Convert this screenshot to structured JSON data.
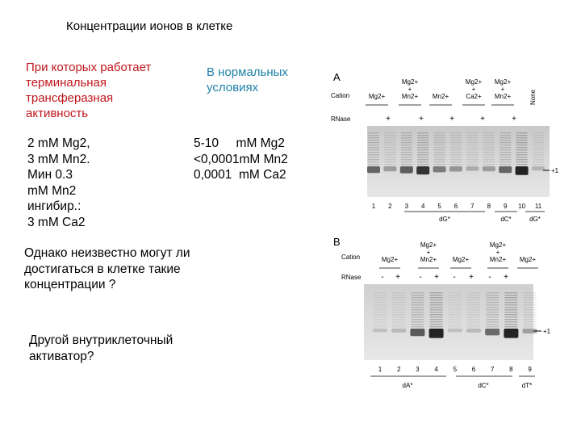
{
  "slide": {
    "title": "Концентрации ионов в клетке",
    "red_heading": "При которых работает\nтерминальная\nтрансферазная\nактивность",
    "blue_heading": "В нормальных\nусловиях",
    "left_list": "2 mM Mg2,\n3 mM Mn2.\nМин 0.3\nmM Mn2\nингибир.:\n3 mM Ca2",
    "right_list": "5-10     mM Mg2\n<0,0001mM Mn2\n0,0001  mM Ca2",
    "note": "Однако неизвестно могут ли\nдостигаться в клетке такие\nконцентрации ?",
    "other_activator": "Другой внутриклеточный\nактиватор?"
  },
  "figure": {
    "panel_a": {
      "label": "A",
      "cation_label": "Cation",
      "rnase_label": "RNase",
      "cations": [
        "Mg2+",
        "Mg2+\n+\nMn2+",
        "Mn2+",
        "Mg2+\n+\nCa2+",
        "Mg2+\n+\nMn2+",
        "None"
      ],
      "rnase": [
        "+",
        "+",
        "+",
        "+",
        "+"
      ],
      "lanes": [
        "1",
        "2",
        "3",
        "4",
        "5",
        "6",
        "7",
        "8",
        "9",
        "10",
        "11"
      ],
      "groups": [
        "dG*",
        "dC*",
        "dG*"
      ],
      "marker": "+1"
    },
    "panel_b": {
      "label": "B",
      "cation_label": "Cation",
      "rnase_label": "RNase",
      "cations": [
        "Mg2+",
        "Mg2+\n+\nMn2+",
        "Mg2+",
        "Mg2+\n+\nMn2+",
        "Mg2+"
      ],
      "rnase": [
        "-",
        "+",
        "-",
        "+",
        "-",
        "+",
        "-",
        "+"
      ],
      "lanes": [
        "1",
        "2",
        "3",
        "4",
        "5",
        "6",
        "7",
        "8",
        "9"
      ],
      "groups": [
        "dA*",
        "dC*",
        "dT*"
      ],
      "marker": "+1"
    }
  }
}
